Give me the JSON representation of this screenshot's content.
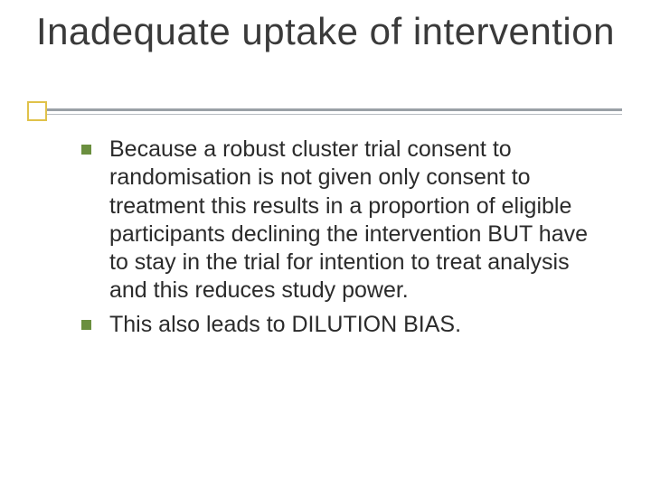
{
  "slide": {
    "title": "Inadequate uptake of intervention",
    "title_color": "#3a3a3a",
    "title_fontsize": 42,
    "underline": {
      "box_border_color": "#e0c24a",
      "line_color_thick": "#9aa0a6",
      "line_color_thin": "#b8bcc2"
    },
    "bullet_color": "#6b8f3f",
    "body_fontsize": 25,
    "body_color": "#2b2b2b",
    "background_color": "#ffffff",
    "items": [
      {
        "text": "Because a robust cluster trial consent to randomisation is not given only consent to treatment this results in a proportion of eligible participants declining the intervention BUT have to stay in the trial for intention to treat analysis and this reduces study power."
      },
      {
        "text": "This also leads to DILUTION BIAS."
      }
    ]
  }
}
